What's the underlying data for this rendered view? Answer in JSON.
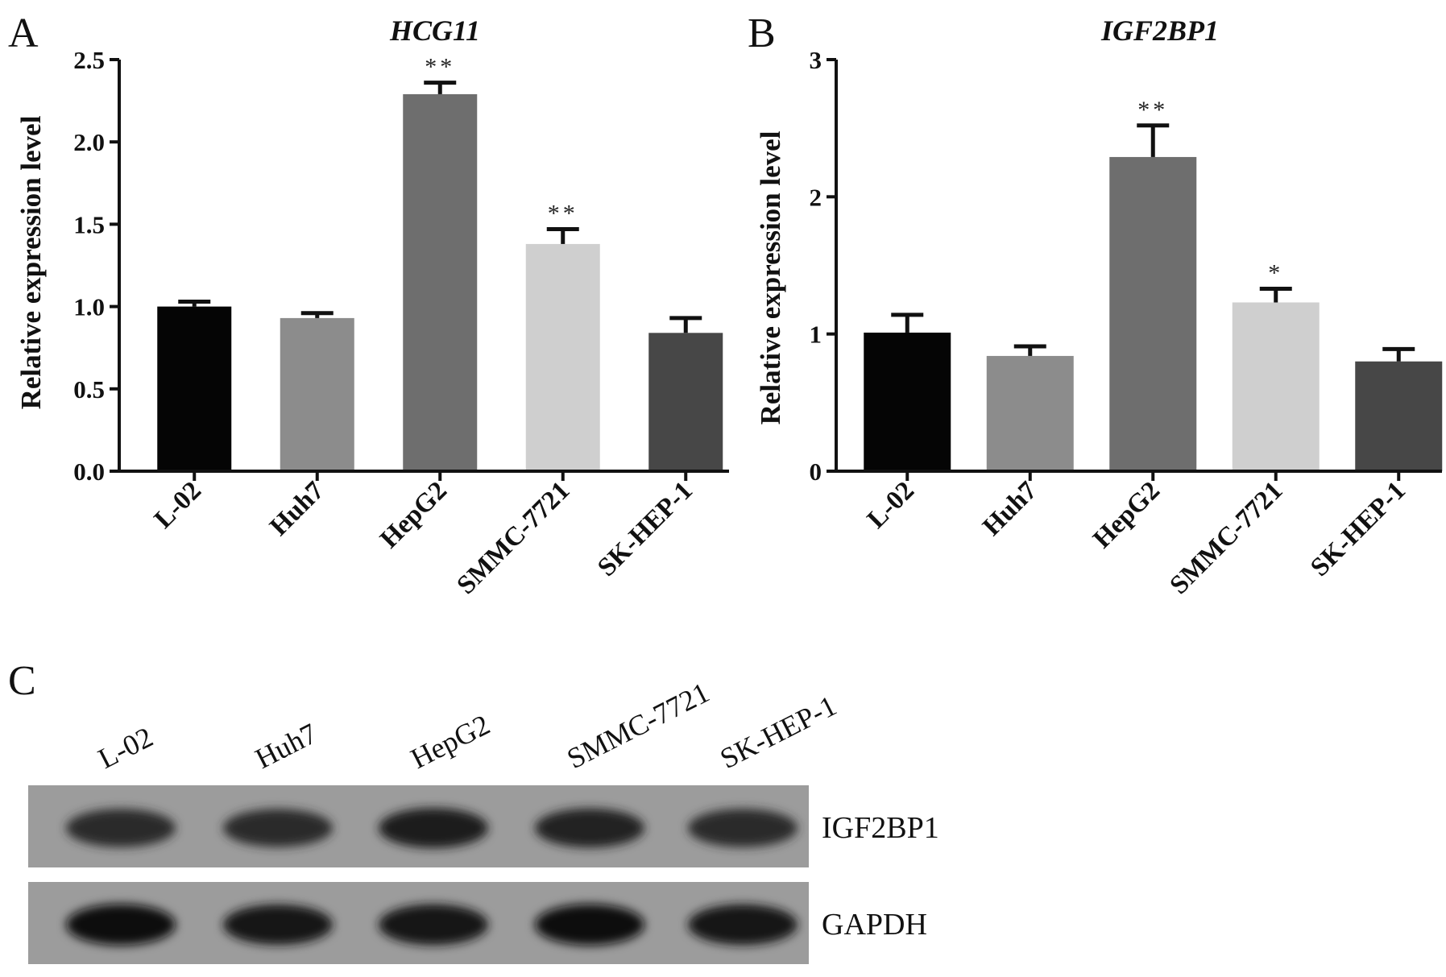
{
  "panels": {
    "a": "A",
    "b": "B",
    "c": "C"
  },
  "chart_data": [
    {
      "type": "bar",
      "title": "HCG11",
      "ylabel": "Relative expression level",
      "xlabel": "",
      "ylim": [
        0,
        2.5
      ],
      "yticks": [
        "0.0",
        "0.5",
        "1.0",
        "1.5",
        "2.0",
        "2.5"
      ],
      "categories": [
        "L-02",
        "Huh7",
        "HepG2",
        "SMMC-7721",
        "SK-HEP-1"
      ],
      "values": [
        1.0,
        0.93,
        2.29,
        1.38,
        0.84
      ],
      "errors": [
        0.03,
        0.03,
        0.07,
        0.09,
        0.09
      ],
      "significance": [
        "",
        "",
        "**",
        "**",
        ""
      ],
      "colors": [
        "#050505",
        "#8c8c8c",
        "#6e6e6e",
        "#cfcfcf",
        "#474747"
      ]
    },
    {
      "type": "bar",
      "title": "IGF2BP1",
      "ylabel": "Relative expression  level",
      "xlabel": "",
      "ylim": [
        0,
        3
      ],
      "yticks": [
        "0",
        "1",
        "2",
        "3"
      ],
      "categories": [
        "L-02",
        "Huh7",
        "HepG2",
        "SMMC-7721",
        "SK-HEP-1"
      ],
      "values": [
        1.01,
        0.84,
        2.29,
        1.23,
        0.8
      ],
      "errors": [
        0.13,
        0.07,
        0.23,
        0.1,
        0.09
      ],
      "significance": [
        "",
        "",
        "**",
        "*",
        ""
      ],
      "colors": [
        "#050505",
        "#8c8c8c",
        "#6e6e6e",
        "#cfcfcf",
        "#474747"
      ]
    }
  ],
  "western_blot": {
    "lanes": [
      "L-02",
      "Huh7",
      "HepG2",
      "SMMC-7721",
      "SK-HEP-1"
    ],
    "rows": [
      {
        "label": "IGF2BP1",
        "intensities": [
          0.72,
          0.7,
          0.85,
          0.78,
          0.72
        ]
      },
      {
        "label": "GAPDH",
        "intensities": [
          0.95,
          0.88,
          0.92,
          0.95,
          0.9
        ]
      }
    ]
  }
}
